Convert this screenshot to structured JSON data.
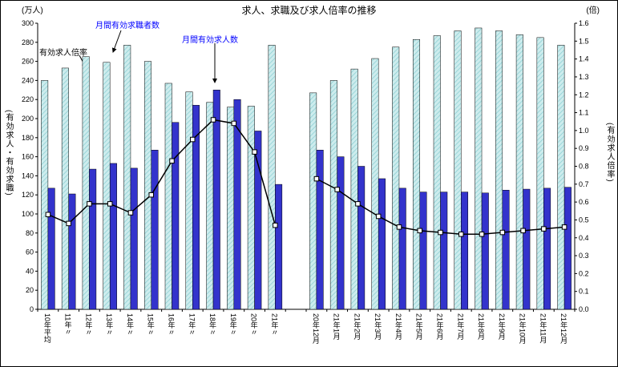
{
  "title": "求人、求職及び求人倍率の推移",
  "units": {
    "left": "(万人)",
    "right": "(倍)"
  },
  "axis_titles": {
    "left": "(有効求人・有効求職)",
    "right": "(有効求人倍率)"
  },
  "annotations": {
    "ratio": "有効求人倍率",
    "seekers": "月間有効求職者数",
    "openings": "月間有効求人数"
  },
  "chart_data": {
    "type": "bar",
    "subtype": "grouped-bars-with-line-overlay",
    "title": "求人、求職及び求人倍率の推移",
    "categories": [
      "10年平均",
      "11年〃",
      "12年〃",
      "13年〃",
      "14年〃",
      "15年〃",
      "16年〃",
      "17年〃",
      "18年〃",
      "19年〃",
      "20年〃",
      "21年〃",
      "20年12月",
      "21年1月",
      "21年2月",
      "21年3月",
      "21年4月",
      "21年5月",
      "21年6月",
      "21年7月",
      "21年8月",
      "21年9月",
      "21年10月",
      "21年11月",
      "21年12月"
    ],
    "gap_after_index": 11,
    "series": [
      {
        "name": "月間有効求職者数",
        "kind": "bar",
        "axis": "left",
        "color": "#c5e9ea",
        "pattern": "hatch",
        "values": [
          240,
          253,
          265,
          259,
          277,
          260,
          237,
          228,
          217,
          212,
          213,
          277,
          227,
          240,
          252,
          263,
          275,
          283,
          287,
          292,
          295,
          292,
          288,
          285,
          277
        ]
      },
      {
        "name": "月間有効求人数",
        "kind": "bar",
        "axis": "left",
        "color": "#3333cc",
        "values": [
          127,
          121,
          147,
          153,
          148,
          167,
          196,
          214,
          230,
          220,
          187,
          131,
          167,
          160,
          150,
          137,
          127,
          123,
          123,
          123,
          122,
          125,
          126,
          127,
          128
        ]
      },
      {
        "name": "有効求人倍率",
        "kind": "line",
        "axis": "right",
        "color": "#000000",
        "marker": "white-square",
        "values": [
          0.53,
          0.48,
          0.59,
          0.59,
          0.54,
          0.64,
          0.83,
          0.95,
          1.06,
          1.04,
          0.88,
          0.47,
          0.73,
          0.67,
          0.59,
          0.52,
          0.46,
          0.44,
          0.43,
          0.42,
          0.42,
          0.43,
          0.44,
          0.45,
          0.46
        ]
      }
    ],
    "left_axis": {
      "unit": "(万人)",
      "title": "(有効求人・有効求職)",
      "min": 0,
      "max": 300,
      "step": 20
    },
    "right_axis": {
      "unit": "(倍)",
      "title": "(有効求人倍率)",
      "min": 0,
      "max": 1.6,
      "step": 0.1
    },
    "grid": false,
    "legend": "inline-annotations-with-arrows"
  }
}
